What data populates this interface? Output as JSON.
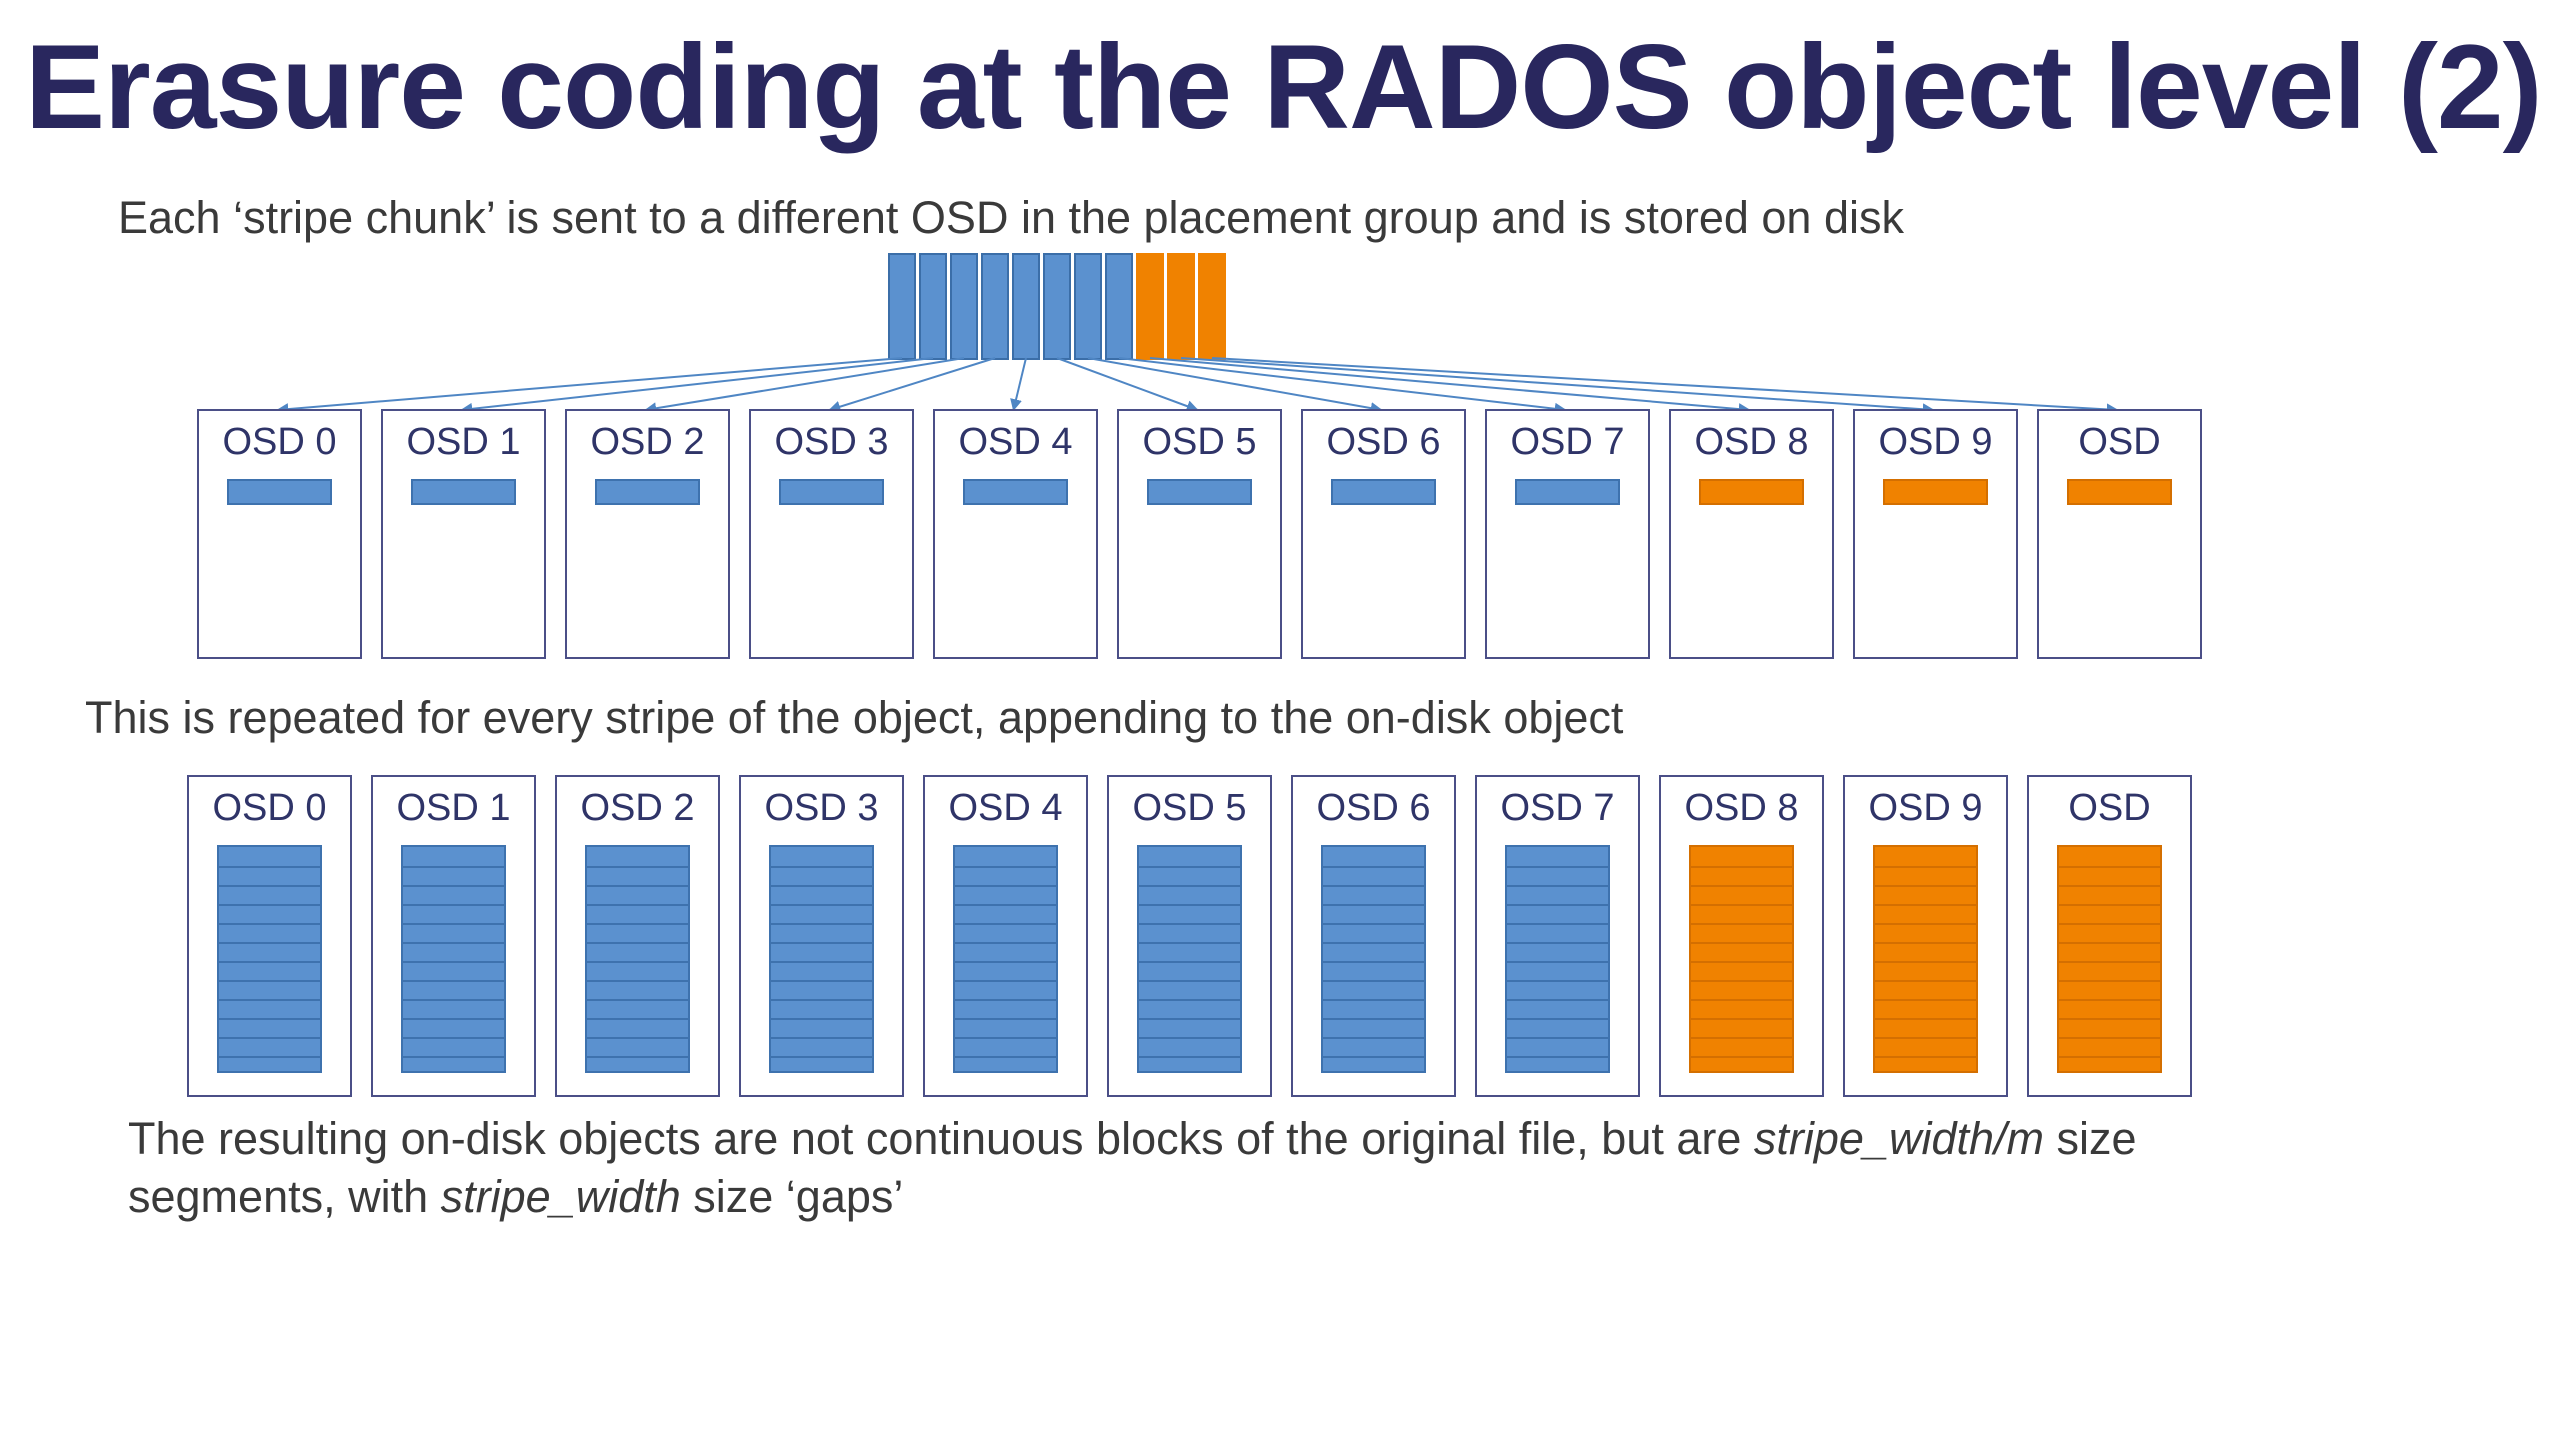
{
  "title": "Erasure coding at the RADOS object level (2)",
  "line1": "Each ‘stripe chunk’ is sent to a different OSD in the placement group and is stored on disk",
  "line2": "This is repeated for every stripe of the object, appending to the on-disk object",
  "footer": {
    "l1_a": "The resulting on-disk objects are not continuous blocks of the original file, but are ",
    "l1_em": "stripe_width/m",
    "l1_b": " size",
    "l2_a": "segments, with ",
    "l2_em": "stripe_width",
    "l2_b": " size ‘gaps’"
  },
  "osds": [
    {
      "label": "OSD 0",
      "type": "data"
    },
    {
      "label": "OSD 1",
      "type": "data"
    },
    {
      "label": "OSD 2",
      "type": "data"
    },
    {
      "label": "OSD 3",
      "type": "data"
    },
    {
      "label": "OSD 4",
      "type": "data"
    },
    {
      "label": "OSD 5",
      "type": "data"
    },
    {
      "label": "OSD 6",
      "type": "data"
    },
    {
      "label": "OSD 7",
      "type": "data"
    },
    {
      "label": "OSD 8",
      "type": "parity"
    },
    {
      "label": "OSD 9",
      "type": "parity"
    },
    {
      "label": "OSD",
      "type": "parity"
    }
  ],
  "stripe": {
    "data_chunks": 8,
    "parity_chunks": 3
  },
  "segments_per_osd": 12,
  "colors": {
    "data": "#5b91cf",
    "parity": "#f08200",
    "title": "#29275e",
    "osd_border": "#4b4f87",
    "arrow": "#4f86c4"
  }
}
